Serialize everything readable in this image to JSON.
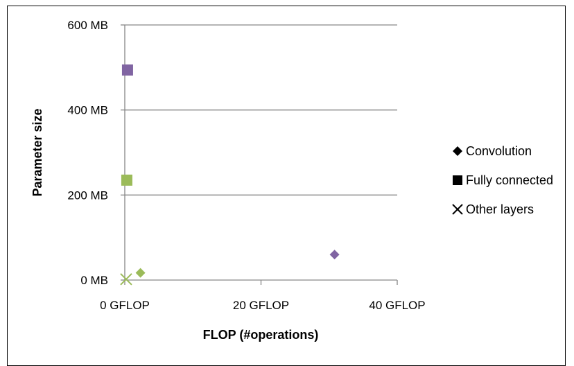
{
  "chart_data": {
    "type": "scatter",
    "title": "",
    "xlabel": "FLOP (#operations)",
    "ylabel": "Parameter size",
    "xlim": [
      0,
      40
    ],
    "ylim": [
      0,
      600
    ],
    "x_ticks": [
      0,
      20,
      40
    ],
    "x_tick_labels": [
      "0 GFLOP",
      "20 GFLOP",
      "40 GFLOP"
    ],
    "y_ticks": [
      0,
      200,
      400,
      600
    ],
    "y_tick_labels": [
      "0 MB",
      "200 MB",
      "400 MB",
      "600 MB"
    ],
    "grid": "horizontal",
    "legend_position": "right",
    "legend": [
      {
        "name": "Convolution",
        "marker": "diamond"
      },
      {
        "name": "Fully connected",
        "marker": "square"
      },
      {
        "name": "Other layers",
        "marker": "x"
      }
    ],
    "points": [
      {
        "series": "Convolution",
        "x": 30.8,
        "y": 60,
        "color": "#8064a2"
      },
      {
        "series": "Convolution",
        "x": 2.3,
        "y": 17,
        "color": "#9bbb59"
      },
      {
        "series": "Fully connected",
        "x": 0.4,
        "y": 494,
        "color": "#8064a2"
      },
      {
        "series": "Fully connected",
        "x": 0.3,
        "y": 235,
        "color": "#9bbb59"
      },
      {
        "series": "Other layers",
        "x": 0.2,
        "y": 2,
        "color": "#9bbb59"
      }
    ]
  }
}
